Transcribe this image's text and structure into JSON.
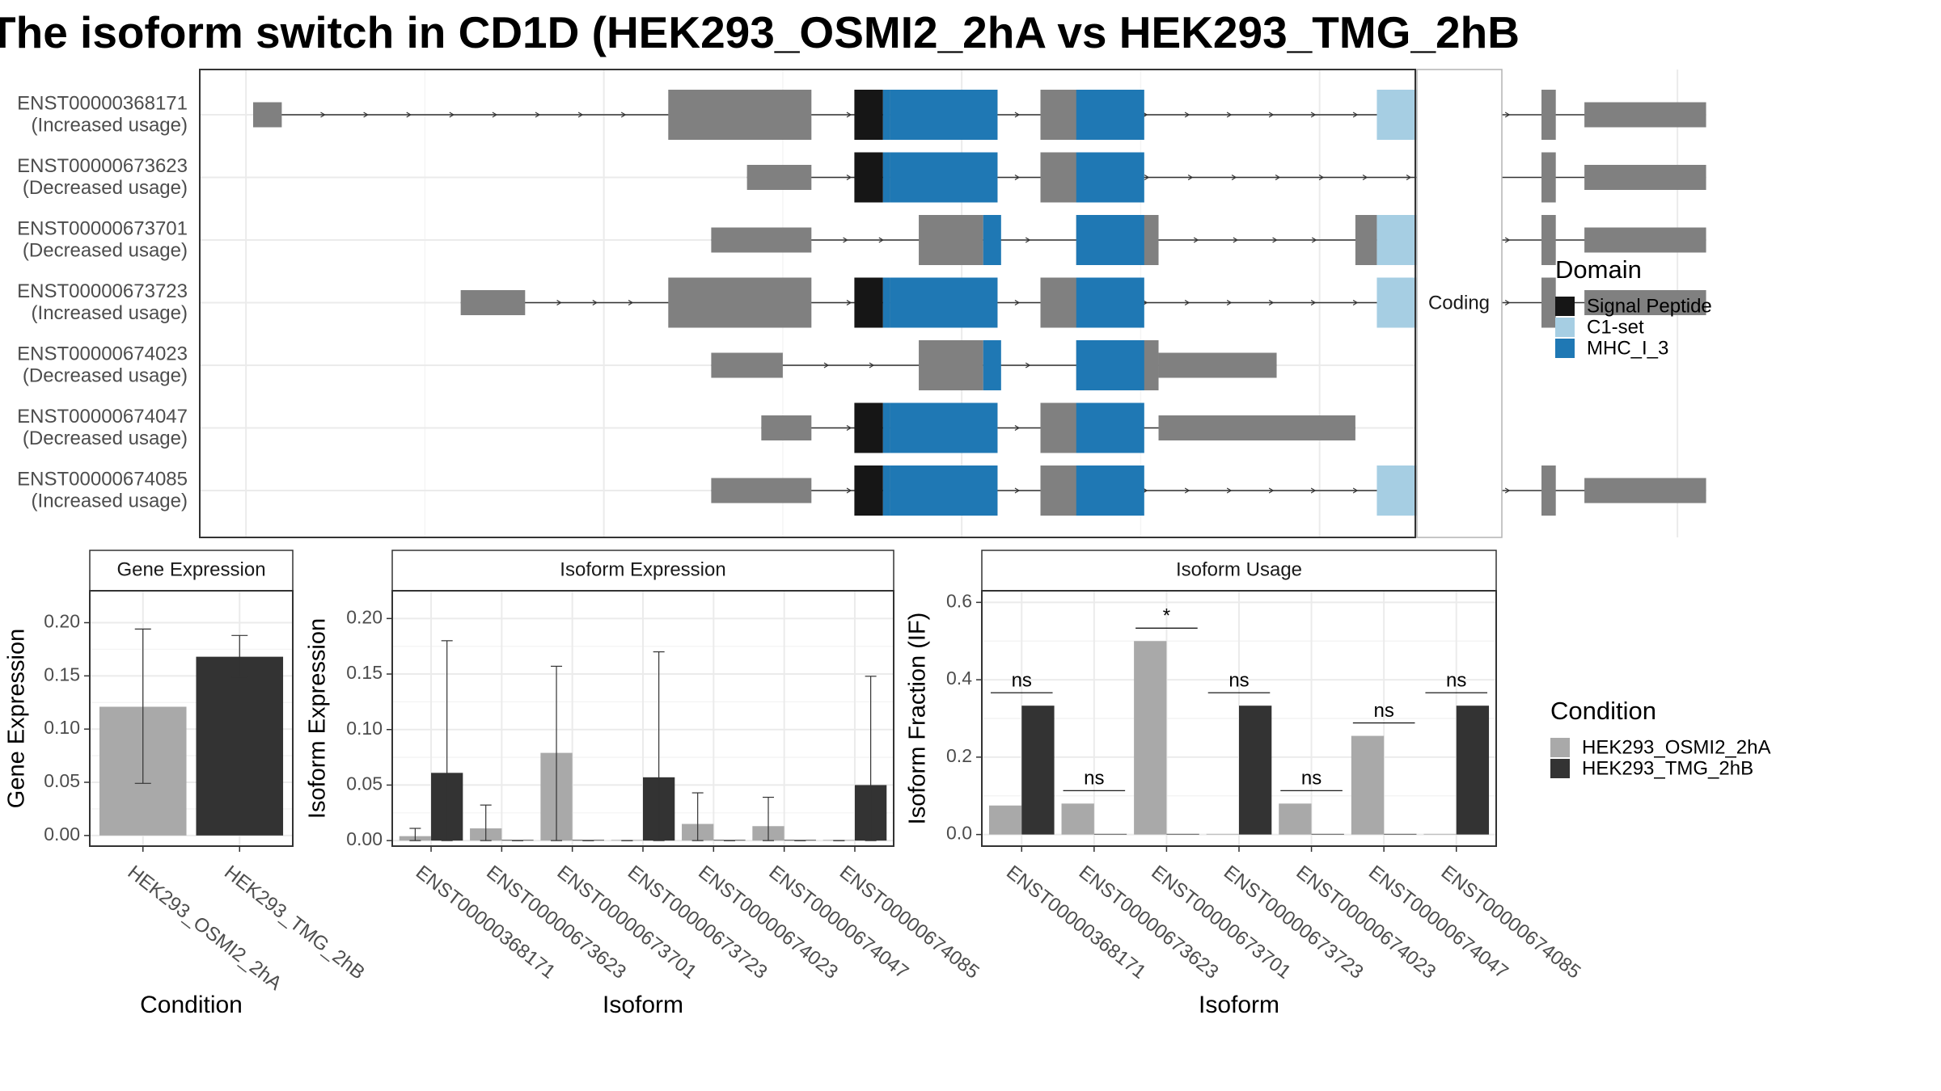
{
  "title": "The isoform switch in CD1D (HEK293_OSMI2_2hA vs HEK293_TMG_2hB",
  "colors": {
    "signal_peptide": "#161616",
    "c1_set": "#a6cee3",
    "mhc_i_3": "#1f78b4",
    "exon": "#808080",
    "cond_a": "#a9a9a9",
    "cond_b": "#333333"
  },
  "chart_data": [
    {
      "type": "transcript-structure",
      "strip_label": "Coding",
      "legend": {
        "title": "Domain",
        "items": [
          {
            "name": "Signal Peptide",
            "color": "#161616"
          },
          {
            "name": "C1-set",
            "color": "#a6cee3"
          },
          {
            "name": "MHC_I_3",
            "color": "#1f78b4"
          }
        ]
      },
      "transcripts": [
        {
          "id": "ENST00000368171",
          "usage": "(Increased usage)",
          "exons": [
            [
              1,
              5
            ],
            [
              59,
              79
            ],
            [
              90,
              105
            ],
            [
              111,
              120
            ],
            [
              167,
              172
            ],
            [
              181,
              183
            ],
            [
              187,
              204
            ]
          ],
          "domains": [
            {
              "name": "Signal Peptide",
              "range": [
                85,
                89
              ]
            },
            {
              "name": "MHC_I_3",
              "range": [
                89,
                90
              ]
            },
            {
              "name": "MHC_I_3",
              "range": [
                90,
                105
              ]
            },
            {
              "name": "MHC_I_3",
              "range": [
                116,
                125.5
              ]
            },
            {
              "name": "C1-set",
              "range": [
                158,
                167
              ]
            }
          ]
        },
        {
          "id": "ENST00000673623",
          "usage": "(Decreased usage)",
          "exons": [
            [
              70,
              79
            ],
            [
              90,
              105
            ],
            [
              111,
              120
            ],
            [
              181,
              183
            ],
            [
              187,
              204
            ]
          ],
          "domains": [
            {
              "name": "Signal Peptide",
              "range": [
                85,
                89
              ]
            },
            {
              "name": "MHC_I_3",
              "range": [
                89,
                90
              ]
            },
            {
              "name": "MHC_I_3",
              "range": [
                90,
                105
              ]
            },
            {
              "name": "MHC_I_3",
              "range": [
                116,
                125.5
              ]
            }
          ]
        },
        {
          "id": "ENST00000673701",
          "usage": "(Decreased usage)",
          "exons": [
            [
              65,
              79
            ],
            [
              94,
              103
            ],
            [
              116,
              127.5
            ],
            [
              155,
              158
            ],
            [
              167,
              172
            ],
            [
              181,
              183
            ],
            [
              187,
              204
            ]
          ],
          "domains": [
            {
              "name": "MHC_I_3",
              "range": [
                103,
                105.5
              ]
            },
            {
              "name": "MHC_I_3",
              "range": [
                116,
                125.5
              ]
            },
            {
              "name": "C1-set",
              "range": [
                158,
                167
              ]
            }
          ]
        },
        {
          "id": "ENST00000673723",
          "usage": "(Increased usage)",
          "exons": [
            [
              30,
              39
            ],
            [
              59,
              79
            ],
            [
              90,
              105
            ],
            [
              111,
              120
            ],
            [
              167,
              172
            ],
            [
              181,
              183
            ],
            [
              187,
              204
            ]
          ],
          "domains": [
            {
              "name": "Signal Peptide",
              "range": [
                85,
                89
              ]
            },
            {
              "name": "MHC_I_3",
              "range": [
                89,
                90
              ]
            },
            {
              "name": "MHC_I_3",
              "range": [
                90,
                105
              ]
            },
            {
              "name": "MHC_I_3",
              "range": [
                116,
                125.5
              ]
            },
            {
              "name": "C1-set",
              "range": [
                158,
                167
              ]
            }
          ]
        },
        {
          "id": "ENST00000674023",
          "usage": "(Decreased usage)",
          "exons": [
            [
              65,
              75
            ],
            [
              94,
              103
            ],
            [
              116,
              127.5
            ],
            [
              127.5,
              144
            ]
          ],
          "domains": [
            {
              "name": "MHC_I_3",
              "range": [
                103,
                105.5
              ]
            },
            {
              "name": "MHC_I_3",
              "range": [
                116,
                125.5
              ]
            }
          ]
        },
        {
          "id": "ENST00000674047",
          "usage": "(Decreased usage)",
          "exons": [
            [
              72,
              79
            ],
            [
              90,
              105
            ],
            [
              111,
              120
            ],
            [
              127.5,
              155
            ]
          ],
          "domains": [
            {
              "name": "Signal Peptide",
              "range": [
                85,
                89
              ]
            },
            {
              "name": "MHC_I_3",
              "range": [
                89,
                90
              ]
            },
            {
              "name": "MHC_I_3",
              "range": [
                90,
                105
              ]
            },
            {
              "name": "MHC_I_3",
              "range": [
                116,
                125.5
              ]
            }
          ]
        },
        {
          "id": "ENST00000674085",
          "usage": "(Increased usage)",
          "exons": [
            [
              65,
              79
            ],
            [
              90,
              105
            ],
            [
              111,
              120
            ],
            [
              167,
              172
            ],
            [
              181,
              183
            ],
            [
              187,
              204
            ]
          ],
          "domains": [
            {
              "name": "Signal Peptide",
              "range": [
                85,
                89
              ]
            },
            {
              "name": "MHC_I_3",
              "range": [
                89,
                90
              ]
            },
            {
              "name": "MHC_I_3",
              "range": [
                90,
                105
              ]
            },
            {
              "name": "MHC_I_3",
              "range": [
                116,
                125.5
              ]
            },
            {
              "name": "C1-set",
              "range": [
                158,
                167
              ]
            }
          ]
        }
      ]
    },
    {
      "type": "bar",
      "strip": "Gene Expression",
      "ylabel": "Gene Expression",
      "xlabel": "Condition",
      "ylim": [
        -0.01,
        0.23
      ],
      "yticks": [
        0.0,
        0.05,
        0.1,
        0.15,
        0.2
      ],
      "ytick_labels": [
        "0.00",
        "0.05",
        "0.10",
        "0.15",
        "0.20"
      ],
      "categories": [
        "HEK293_OSMI2_2hA",
        "HEK293_TMG_2hB"
      ],
      "values": [
        0.121,
        0.168
      ],
      "err_low": [
        0.049,
        0.149
      ],
      "err_high": [
        0.194,
        0.188
      ]
    },
    {
      "type": "bar",
      "strip": "Isoform Expression",
      "ylabel": "Isoform Expression",
      "xlabel": "Isoform",
      "ylim": [
        -0.005,
        0.225
      ],
      "yticks": [
        0.0,
        0.05,
        0.1,
        0.15,
        0.2
      ],
      "ytick_labels": [
        "0.00",
        "0.05",
        "0.10",
        "0.15",
        "0.20"
      ],
      "categories": [
        "ENST00000368171",
        "ENST00000673623",
        "ENST00000673701",
        "ENST00000673723",
        "ENST00000674023",
        "ENST00000674047",
        "ENST00000674085"
      ],
      "series": [
        {
          "name": "HEK293_OSMI2_2hA",
          "values": [
            0.004,
            0.011,
            0.079,
            0.0,
            0.015,
            0.013,
            0.0
          ],
          "err_low": [
            0.0,
            0.0,
            0.0,
            0.0,
            0.0,
            0.0,
            0.0
          ],
          "err_high": [
            0.011,
            0.032,
            0.157,
            0.0,
            0.043,
            0.039,
            0.0
          ]
        },
        {
          "name": "HEK293_TMG_2hB",
          "values": [
            0.061,
            0.0,
            0.0,
            0.057,
            0.0,
            0.0,
            0.05
          ],
          "err_low": [
            0.0,
            0.0,
            0.0,
            0.0,
            0.0,
            0.0,
            0.0
          ],
          "err_high": [
            0.18,
            0.0,
            0.0,
            0.17,
            0.0,
            0.0,
            0.148
          ]
        }
      ]
    },
    {
      "type": "bar",
      "strip": "Isoform Usage",
      "ylabel": "Isoform Fraction (IF)",
      "xlabel": "Isoform",
      "ylim": [
        -0.03,
        0.63
      ],
      "yticks": [
        0.0,
        0.2,
        0.4,
        0.6
      ],
      "ytick_labels": [
        "0.0",
        "0.2",
        "0.4",
        "0.6"
      ],
      "categories": [
        "ENST00000368171",
        "ENST00000673623",
        "ENST00000673701",
        "ENST00000673723",
        "ENST00000674023",
        "ENST00000674047",
        "ENST00000674085"
      ],
      "series": [
        {
          "name": "HEK293_OSMI2_2hA",
          "values": [
            0.075,
            0.08,
            0.5,
            0.0,
            0.08,
            0.255,
            0.0
          ]
        },
        {
          "name": "HEK293_TMG_2hB",
          "values": [
            0.333,
            0.0,
            0.0,
            0.333,
            0.0,
            0.0,
            0.333
          ]
        }
      ],
      "significance": [
        "ns",
        "ns",
        "*",
        "ns",
        "ns",
        "ns",
        "ns"
      ]
    }
  ],
  "condition_legend": {
    "title": "Condition",
    "items": [
      {
        "name": "HEK293_OSMI2_2hA",
        "color": "#a9a9a9"
      },
      {
        "name": "HEK293_TMG_2hB",
        "color": "#333333"
      }
    ]
  }
}
